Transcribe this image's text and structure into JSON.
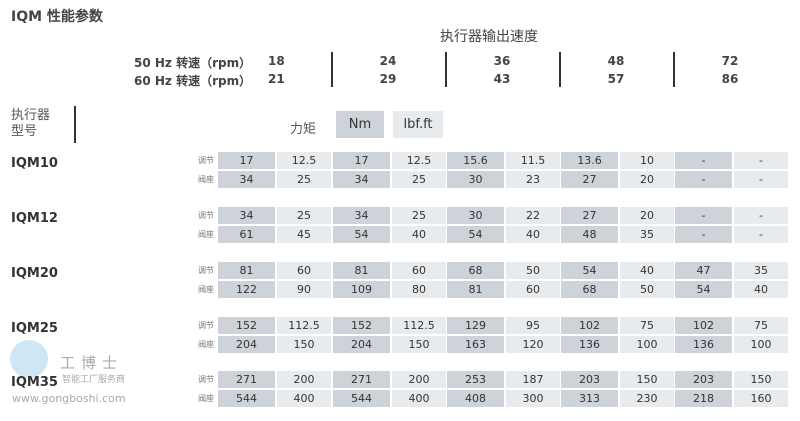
{
  "title": "IQM 性能参数",
  "speed_header": "执行器输出速度",
  "rpm_rows": [
    {
      "label": "50 Hz 转速（rpm）",
      "values": [
        "18",
        "24",
        "36",
        "48",
        "72"
      ]
    },
    {
      "label": "60 Hz 转速（rpm）",
      "values": [
        "21",
        "29",
        "43",
        "57",
        "86"
      ]
    }
  ],
  "type_label": [
    "执行器",
    "型号"
  ],
  "torque_label": "力矩",
  "units": [
    "Nm",
    "lbf.ft"
  ],
  "row_labels": [
    "调节",
    "阀座"
  ],
  "models": [
    {
      "name": "IQM10",
      "rows": [
        [
          "17",
          "12.5",
          "17",
          "12.5",
          "15.6",
          "11.5",
          "13.6",
          "10",
          "-",
          "-"
        ],
        [
          "34",
          "25",
          "34",
          "25",
          "30",
          "23",
          "27",
          "20",
          "-",
          "-"
        ]
      ]
    },
    {
      "name": "IQM12",
      "rows": [
        [
          "34",
          "25",
          "34",
          "25",
          "30",
          "22",
          "27",
          "20",
          "-",
          "-"
        ],
        [
          "61",
          "45",
          "54",
          "40",
          "54",
          "40",
          "48",
          "35",
          "-",
          "-"
        ]
      ]
    },
    {
      "name": "IQM20",
      "rows": [
        [
          "81",
          "60",
          "81",
          "60",
          "68",
          "50",
          "54",
          "40",
          "47",
          "35"
        ],
        [
          "122",
          "90",
          "109",
          "80",
          "81",
          "60",
          "68",
          "50",
          "54",
          "40"
        ]
      ]
    },
    {
      "name": "IQM25",
      "rows": [
        [
          "152",
          "112.5",
          "152",
          "112.5",
          "129",
          "95",
          "102",
          "75",
          "102",
          "75"
        ],
        [
          "204",
          "150",
          "204",
          "150",
          "163",
          "120",
          "136",
          "100",
          "136",
          "100"
        ]
      ]
    },
    {
      "name": "IQM35",
      "rows": [
        [
          "271",
          "200",
          "271",
          "200",
          "253",
          "187",
          "203",
          "150",
          "203",
          "150"
        ],
        [
          "544",
          "400",
          "544",
          "400",
          "408",
          "300",
          "313",
          "230",
          "218",
          "160"
        ]
      ]
    }
  ],
  "watermark": {
    "brand": "工博士",
    "slogan": "智能工厂服务商",
    "url": "www.gongboshi.com"
  }
}
